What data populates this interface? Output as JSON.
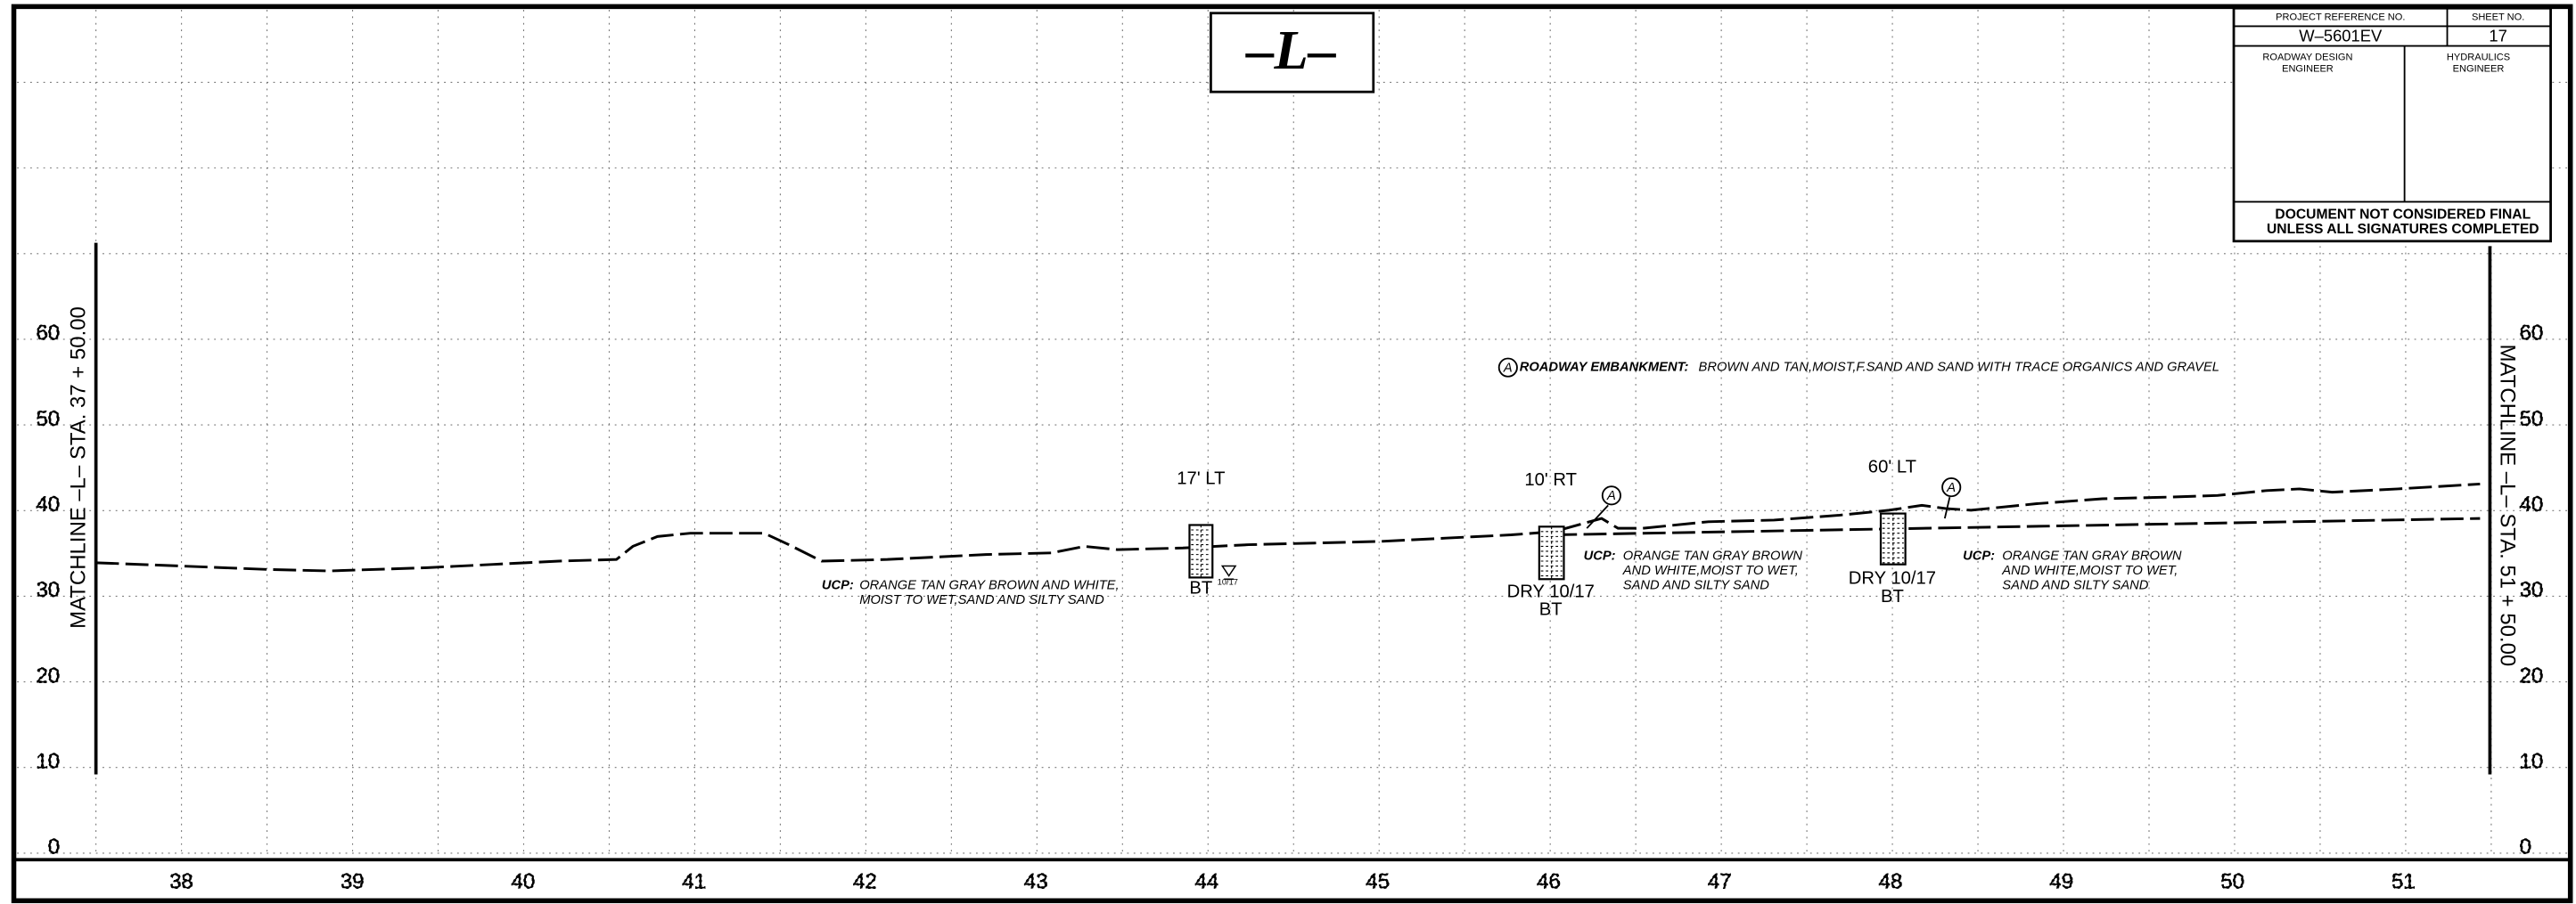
{
  "header": {
    "title": "–L–"
  },
  "title_block": {
    "project_reference_label": "PROJECT REFERENCE NO.",
    "sheet_label": "SHEET NO.",
    "project_reference": "W–5601EV",
    "sheet": "17",
    "roadway_engineer": [
      "ROADWAY DESIGN",
      "ENGINEER"
    ],
    "hydraulics_engineer": [
      "HYDRAULICS",
      "ENGINEER"
    ],
    "notice": [
      "DOCUMENT NOT CONSIDERED FINAL",
      "UNLESS ALL SIGNATURES COMPLETED"
    ]
  },
  "matchlines": {
    "left": "MATCHLINE –L– STA. 37 + 50.00",
    "right": "MATCHLINE –L– STA. 51 + 50.00"
  },
  "elevations": [
    "0",
    "10",
    "20",
    "30",
    "40",
    "50",
    "60"
  ],
  "stations": [
    "38",
    "39",
    "40",
    "41",
    "42",
    "43",
    "44",
    "45",
    "46",
    "47",
    "48",
    "49",
    "50",
    "51"
  ],
  "borings": [
    {
      "offset": "17' LT",
      "label": "BT",
      "water": "10/17"
    },
    {
      "offset": "10' RT",
      "status": "DRY 10/17",
      "label": "BT"
    },
    {
      "offset": "60' LT",
      "status": "DRY 10/17",
      "label": "BT"
    }
  ],
  "notes": {
    "roadway": {
      "marker": "A",
      "label": "ROADWAY EMBANKMENT:",
      "text": "BROWN AND TAN,MOIST,F.SAND AND SAND WITH TRACE ORGANICS AND GRAVEL"
    },
    "ucp": [
      {
        "label": "UCP:",
        "lines": [
          "ORANGE TAN GRAY BROWN AND WHITE,",
          "MOIST TO WET,SAND AND SILTY SAND"
        ]
      },
      {
        "label": "UCP:",
        "lines": [
          "ORANGE TAN GRAY BROWN",
          "AND WHITE,MOIST TO WET,",
          "SAND AND SILTY SAND"
        ]
      },
      {
        "label": "UCP:",
        "lines": [
          "ORANGE TAN GRAY BROWN",
          "AND WHITE,MOIST TO WET,",
          "SAND AND SILTY SAND"
        ]
      }
    ]
  },
  "markers": [
    "A",
    "A"
  ]
}
